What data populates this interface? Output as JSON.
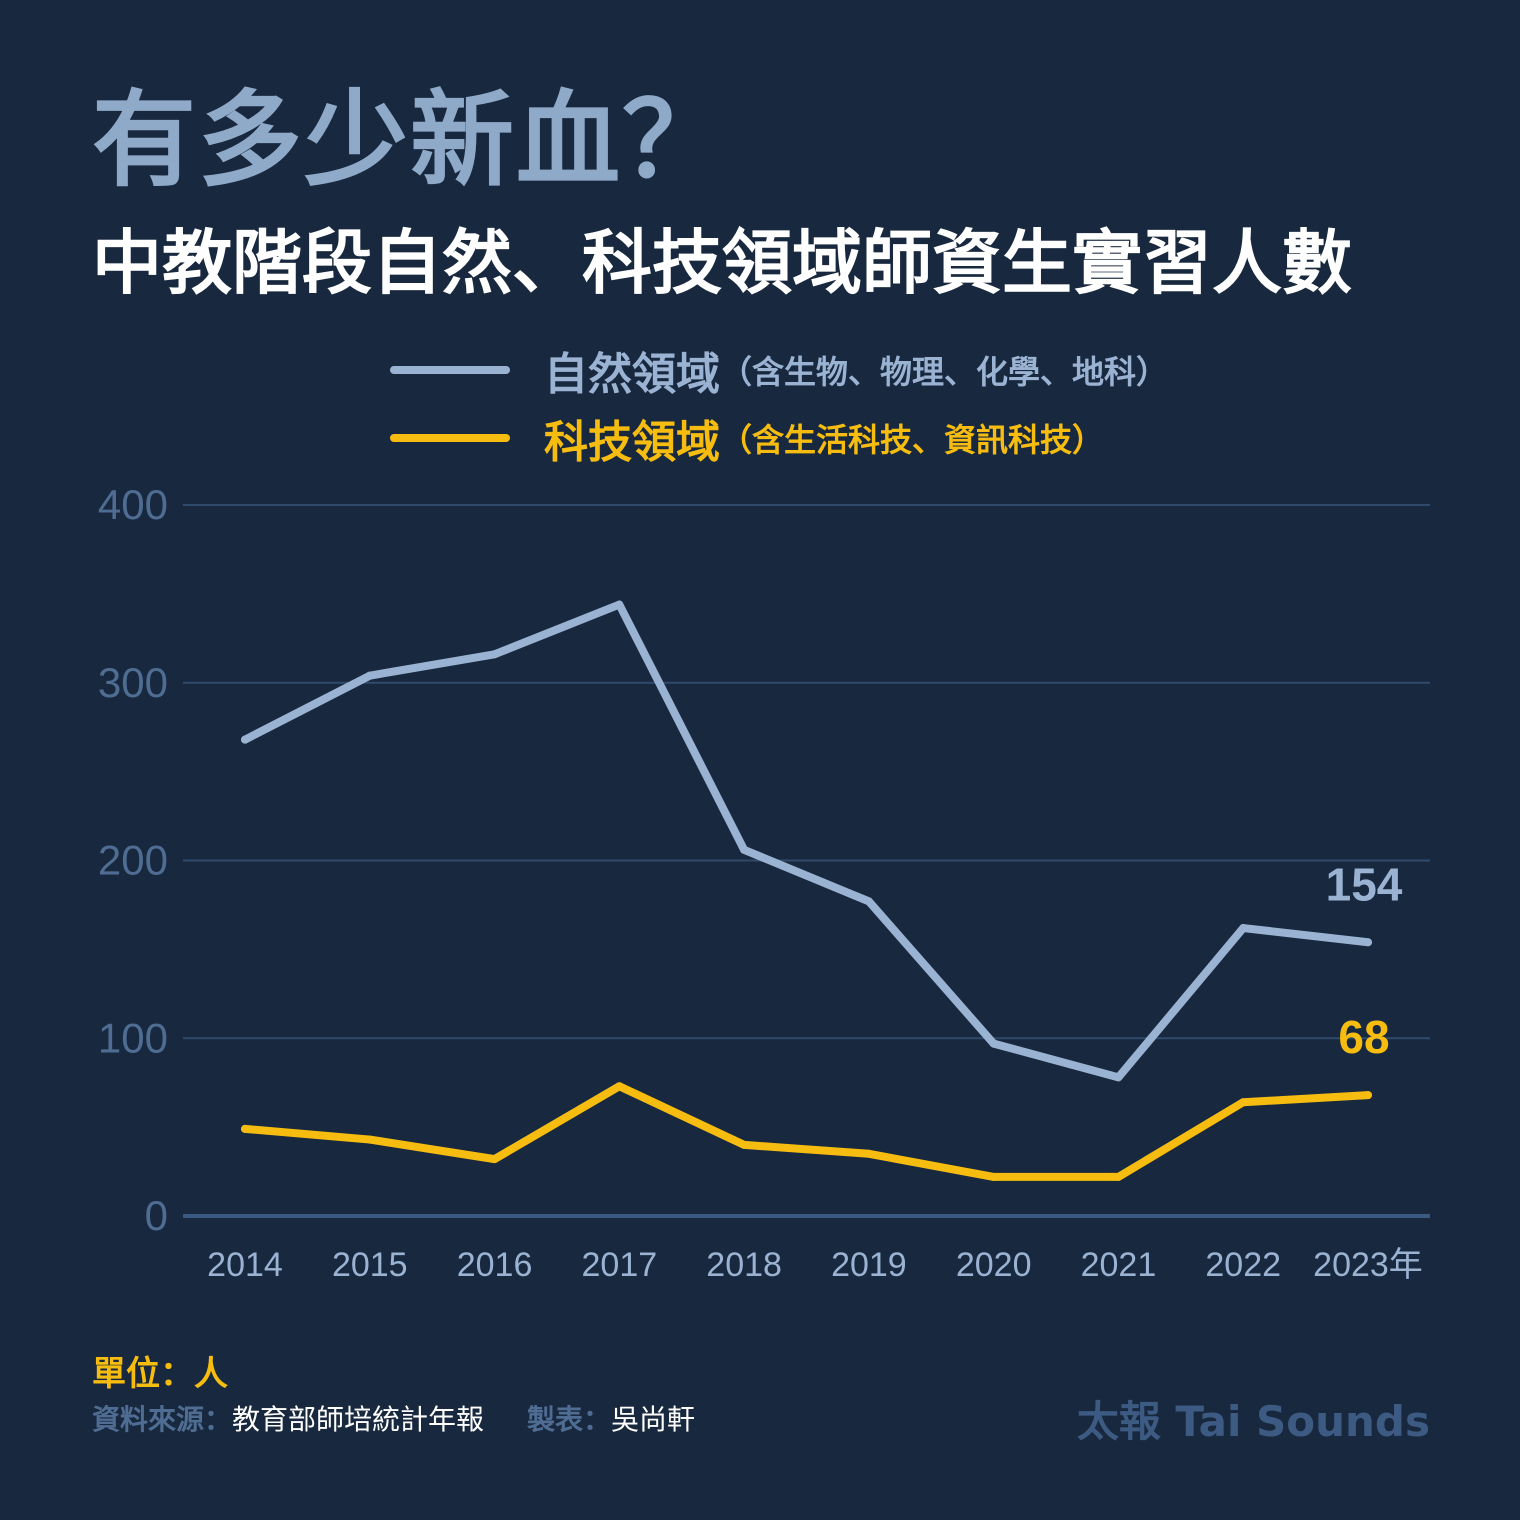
{
  "title": "有多少新血？",
  "subtitle": "中教階段自然、科技領域師資生實習人數",
  "colors": {
    "background": "#18283e",
    "nature": "#9bb3d3",
    "tech": "#f6bd10",
    "grid": "#2f4a6a",
    "baseline": "#3b5a82",
    "tick_y": "#4f6d92",
    "tick_x": "#9bb3d3"
  },
  "legend": [
    {
      "name": "自然領域",
      "note": "（含生物、物理、化學、地科）"
    },
    {
      "name": "科技領域",
      "note": "（含生活科技、資訊科技）"
    }
  ],
  "chart_data": {
    "type": "line",
    "x": [
      "2014",
      "2015",
      "2016",
      "2017",
      "2018",
      "2019",
      "2020",
      "2021",
      "2022",
      "2023年"
    ],
    "ylim": [
      0,
      400
    ],
    "yticks": [
      "0",
      "100",
      "200",
      "300",
      "400"
    ],
    "grid": true,
    "series": [
      {
        "name": "自然領域",
        "values": [
          268,
          304,
          316,
          344,
          206,
          177,
          97,
          78,
          162,
          154
        ],
        "end_label": "154"
      },
      {
        "name": "科技領域",
        "values": [
          49,
          43,
          32,
          73,
          40,
          35,
          22,
          22,
          64,
          68
        ],
        "end_label": "68"
      }
    ]
  },
  "footer": {
    "unit": "單位：人",
    "source_label": "資料來源：",
    "source_value": "教育部師培統計年報",
    "maker_label": "製表：",
    "maker_value": "吳尚軒",
    "brand": "太報 Tai Sounds"
  }
}
